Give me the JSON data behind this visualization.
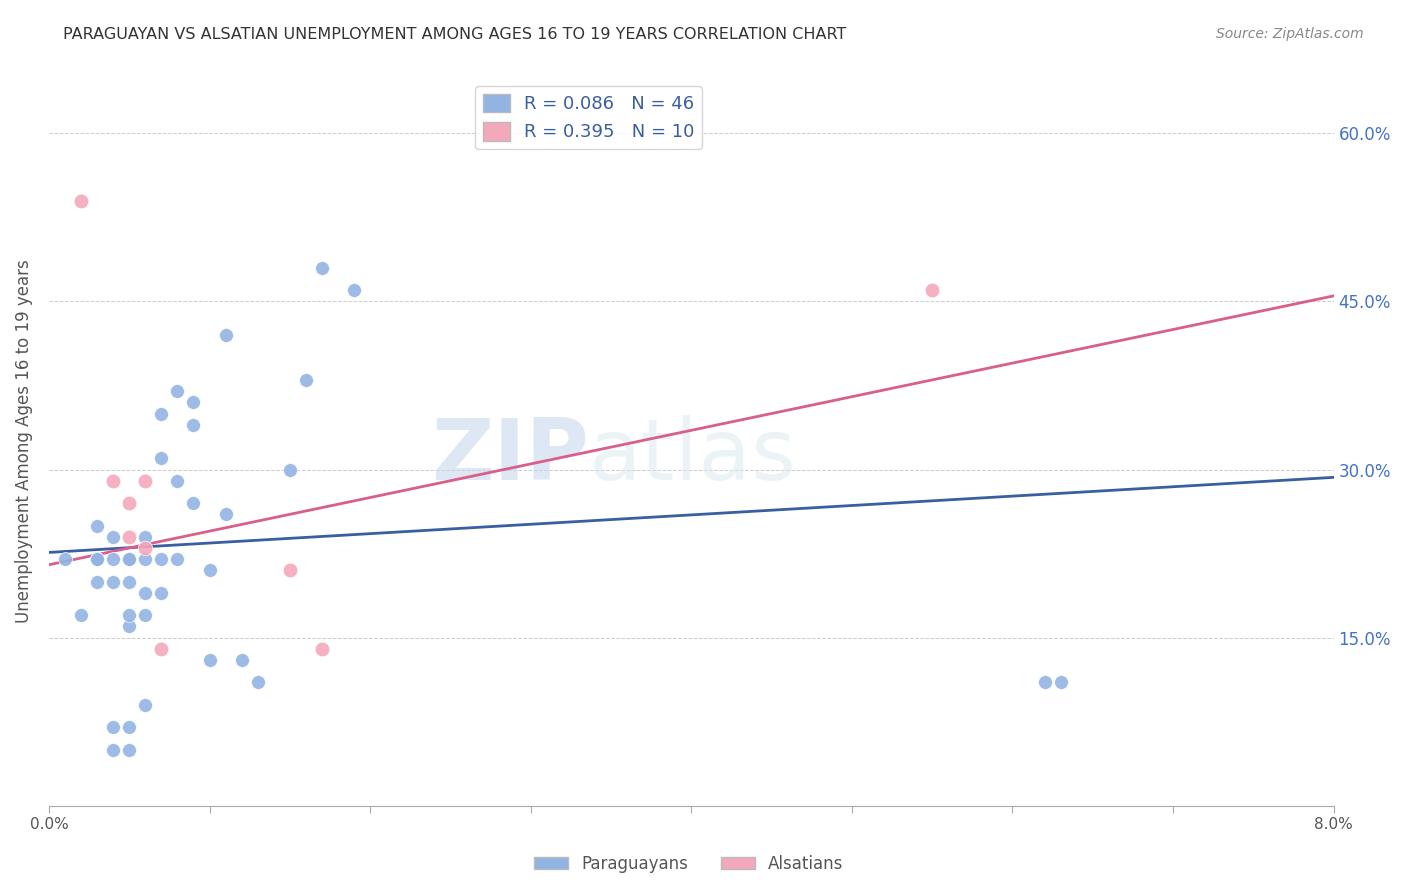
{
  "title": "PARAGUAYAN VS ALSATIAN UNEMPLOYMENT AMONG AGES 16 TO 19 YEARS CORRELATION CHART",
  "source": "Source: ZipAtlas.com",
  "ylabel": "Unemployment Among Ages 16 to 19 years",
  "yticks": [
    0.15,
    0.3,
    0.45,
    0.6
  ],
  "ytick_labels": [
    "15.0%",
    "30.0%",
    "45.0%",
    "60.0%"
  ],
  "xmin": 0.0,
  "xmax": 0.08,
  "ymin": 0.0,
  "ymax": 0.65,
  "watermark_zip": "ZIP",
  "watermark_atlas": "atlas",
  "legend_paraguayan_r": "R = 0.086",
  "legend_paraguayan_n": "N = 46",
  "legend_alsatian_r": "R = 0.395",
  "legend_alsatian_n": "N = 10",
  "paraguayan_color": "#92b4e3",
  "alsatian_color": "#f4a8bb",
  "line_paraguayan_color": "#3a5fa0",
  "line_alsatian_color": "#d95f8a",
  "paraguayan_x": [
    0.001,
    0.002,
    0.003,
    0.003,
    0.003,
    0.003,
    0.003,
    0.004,
    0.004,
    0.004,
    0.004,
    0.004,
    0.005,
    0.005,
    0.005,
    0.005,
    0.005,
    0.005,
    0.005,
    0.006,
    0.006,
    0.006,
    0.006,
    0.006,
    0.007,
    0.007,
    0.007,
    0.007,
    0.008,
    0.008,
    0.008,
    0.009,
    0.009,
    0.009,
    0.01,
    0.01,
    0.011,
    0.011,
    0.012,
    0.013,
    0.015,
    0.016,
    0.017,
    0.019,
    0.062,
    0.063
  ],
  "paraguayan_y": [
    0.22,
    0.17,
    0.2,
    0.22,
    0.22,
    0.22,
    0.25,
    0.05,
    0.07,
    0.2,
    0.22,
    0.24,
    0.05,
    0.07,
    0.16,
    0.17,
    0.2,
    0.22,
    0.22,
    0.09,
    0.17,
    0.19,
    0.22,
    0.24,
    0.19,
    0.22,
    0.31,
    0.35,
    0.22,
    0.29,
    0.37,
    0.27,
    0.34,
    0.36,
    0.13,
    0.21,
    0.26,
    0.42,
    0.13,
    0.11,
    0.3,
    0.38,
    0.48,
    0.46,
    0.11,
    0.11
  ],
  "alsatian_x": [
    0.002,
    0.004,
    0.005,
    0.005,
    0.006,
    0.006,
    0.007,
    0.015,
    0.017,
    0.055
  ],
  "alsatian_y": [
    0.54,
    0.29,
    0.27,
    0.24,
    0.23,
    0.29,
    0.14,
    0.21,
    0.14,
    0.46
  ],
  "paraguayan_line_x": [
    0.0,
    0.08
  ],
  "paraguayan_line_y": [
    0.226,
    0.293
  ],
  "alsatian_line_x": [
    0.0,
    0.08
  ],
  "alsatian_line_y": [
    0.215,
    0.455
  ]
}
